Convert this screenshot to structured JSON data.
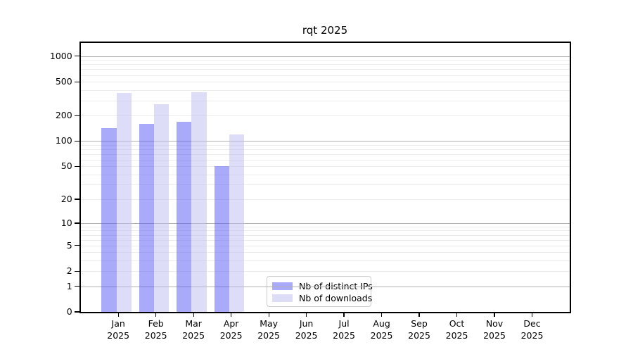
{
  "chart_data": {
    "type": "bar",
    "title": "rqt 2025",
    "xlabel": "",
    "ylabel": "",
    "yscale": "log1p",
    "ylim": [
      0,
      1437
    ],
    "yticks": [
      0,
      1,
      2,
      5,
      10,
      20,
      50,
      100,
      200,
      500,
      1000
    ],
    "grid": "on",
    "grid_major_color": "#b0b0b0",
    "grid_minor_color": "#ececec",
    "categories": [
      "Jan",
      "Feb",
      "Mar",
      "Apr",
      "May",
      "Jun",
      "Jul",
      "Aug",
      "Sep",
      "Oct",
      "Nov",
      "Dec"
    ],
    "year_label": "2025",
    "legend_position": "lower center",
    "series": [
      {
        "name": "Nb of distinct IPs",
        "displayed_color": "#aaaaf7",
        "fill": "rgba(85,85,245,0.5)",
        "values": [
          143,
          158,
          168,
          50,
          null,
          null,
          null,
          null,
          null,
          null,
          null,
          null
        ]
      },
      {
        "name": "Nb of downloads",
        "displayed_color": "#ddddf9",
        "fill": "rgba(187,187,242,0.5)",
        "values": [
          368,
          270,
          377,
          119,
          null,
          null,
          null,
          null,
          null,
          null,
          null,
          null
        ]
      }
    ]
  }
}
